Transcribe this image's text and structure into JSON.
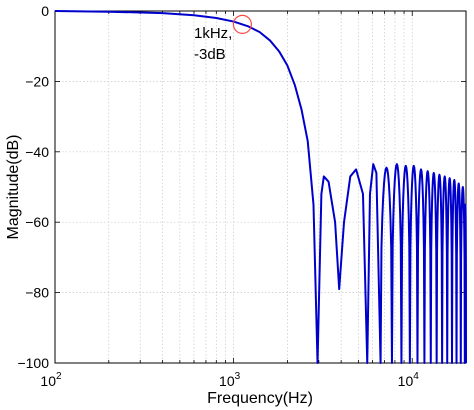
{
  "chart_data": {
    "type": "line",
    "xlabel": "Frequency(Hz)",
    "ylabel": "Magnitude(dB)",
    "xscale": "log",
    "xlim": [
      100,
      20000
    ],
    "ylim": [
      -100,
      0
    ],
    "grid": true,
    "x_ticks": [
      {
        "value": 100,
        "base": "10",
        "exp": "2"
      },
      {
        "value": 1000,
        "base": "10",
        "exp": "3"
      },
      {
        "value": 10000,
        "base": "10",
        "exp": "4"
      }
    ],
    "y_ticks": [
      {
        "value": 0,
        "label": "0"
      },
      {
        "value": -20,
        "label": "−20"
      },
      {
        "value": -40,
        "label": "−40"
      },
      {
        "value": -60,
        "label": "−60"
      },
      {
        "value": -80,
        "label": "−80"
      },
      {
        "value": -100,
        "label": "−100"
      }
    ],
    "series": [
      {
        "color": "#0000cc",
        "points": [
          [
            100,
            0
          ],
          [
            200,
            -0.2
          ],
          [
            400,
            -0.6
          ],
          [
            600,
            -1.2
          ],
          [
            800,
            -2.0
          ],
          [
            1000,
            -3.0
          ],
          [
            1200,
            -4.3
          ],
          [
            1400,
            -6.0
          ],
          [
            1600,
            -8.4
          ],
          [
            1800,
            -11.5
          ],
          [
            2000,
            -15.5
          ],
          [
            2200,
            -21
          ],
          [
            2400,
            -28
          ],
          [
            2600,
            -37
          ],
          [
            2800,
            -55
          ],
          [
            2950,
            -100
          ],
          [
            3100,
            -52
          ],
          [
            3200,
            -47
          ],
          [
            3400,
            -48.5
          ],
          [
            3700,
            -60
          ],
          [
            3900,
            -79
          ],
          [
            4150,
            -60
          ],
          [
            4500,
            -47
          ],
          [
            4850,
            -45
          ],
          [
            5300,
            -52
          ],
          [
            5600,
            -100
          ],
          [
            5800,
            -52
          ],
          [
            6050,
            -43.5
          ],
          [
            6300,
            -46
          ],
          [
            6650,
            -100
          ]
        ],
        "lobes": [
          [
            6650,
            7700,
            -44.5
          ],
          [
            7700,
            8700,
            -43.5
          ],
          [
            8700,
            9700,
            -44
          ],
          [
            9700,
            10700,
            -44
          ],
          [
            10700,
            11700,
            -45
          ],
          [
            11700,
            12700,
            -45.5
          ],
          [
            12700,
            13700,
            -46
          ],
          [
            13700,
            14700,
            -46.5
          ],
          [
            14700,
            15700,
            -47
          ],
          [
            15700,
            16700,
            -47.5
          ],
          [
            16700,
            17700,
            -48
          ],
          [
            17700,
            18700,
            -49
          ],
          [
            18700,
            19700,
            -50
          ],
          [
            19700,
            20000,
            -55
          ]
        ],
        "lobe_floor": -100
      }
    ],
    "annotations": [
      {
        "text_lines": [
          "1kHz,",
          "-3dB"
        ],
        "x": 1000,
        "y": -3,
        "marker": "circle",
        "marker_color": "#ff4444"
      }
    ]
  }
}
